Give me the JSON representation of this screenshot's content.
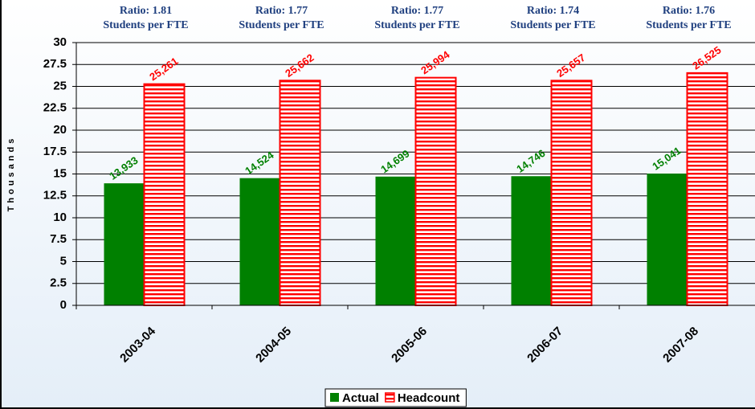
{
  "chart_data": {
    "type": "bar",
    "y_label": "Thousands",
    "categories": [
      "2003-04",
      "2004-05",
      "2005-06",
      "2006-07",
      "2007-08"
    ],
    "annotations": [
      [
        "Ratio:  1.81",
        "Students per FTE"
      ],
      [
        "Ratio:  1.77",
        "Students per FTE"
      ],
      [
        "Ratio:  1.77",
        "Students per FTE"
      ],
      [
        "Ratio:  1.74",
        "Students per FTE"
      ],
      [
        "Ratio:  1.76",
        "Students per FTE"
      ]
    ],
    "series": [
      {
        "name": "Actual",
        "color": "#008000",
        "values": [
          13.933,
          14.524,
          14.699,
          14.746,
          15.041
        ],
        "value_labels": [
          "13,933",
          "14,524",
          "14,699",
          "14,746",
          "15,041"
        ]
      },
      {
        "name": "Headcount",
        "color": "#ff0000",
        "pattern": "horizontal-stripes",
        "values": [
          25.261,
          25.662,
          25.994,
          25.657,
          26.525
        ],
        "value_labels": [
          "25,261",
          "25,662",
          "25,994",
          "25,657",
          "26,525"
        ]
      }
    ],
    "ylim": [
      0,
      30
    ],
    "yticks": [
      0,
      2.5,
      5,
      7.5,
      10,
      12.5,
      15,
      17.5,
      20,
      22.5,
      25,
      27.5,
      30
    ],
    "grid": true,
    "legend": "bottom"
  }
}
